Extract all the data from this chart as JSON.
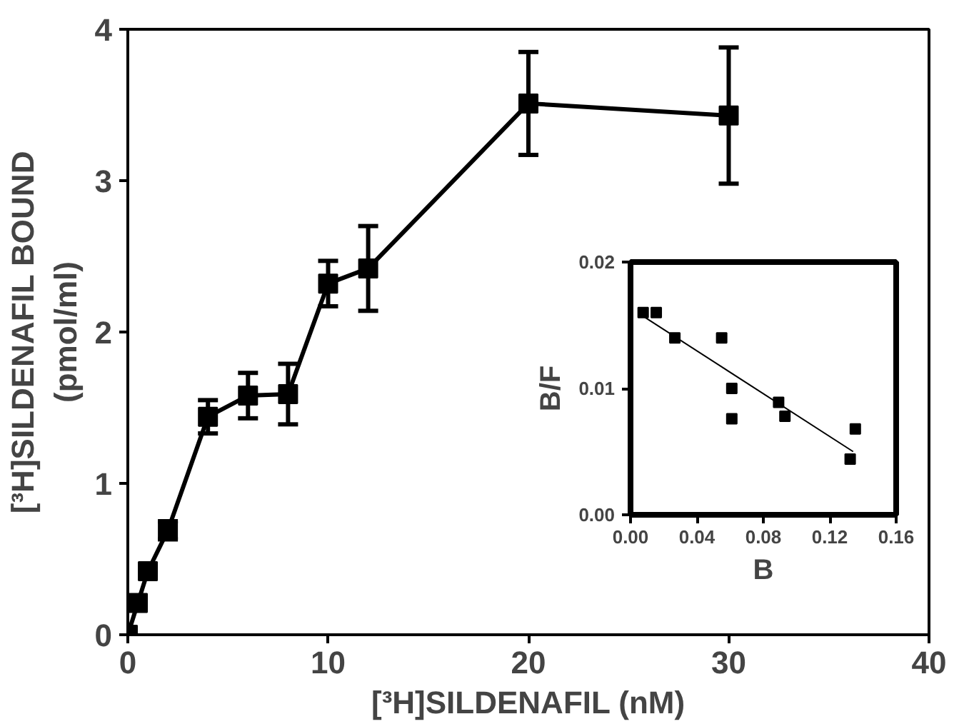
{
  "chart_data": [
    {
      "type": "line",
      "xlabel": "[³H]SILDENAFIL (nM)",
      "ylabel": "[³H]SILDENAFIL BOUND\n(pmol/ml)",
      "x": [
        0,
        0.5,
        1,
        2,
        4,
        6,
        8,
        10,
        12,
        20,
        30
      ],
      "xlim": [
        0,
        40
      ],
      "xticks": [
        0,
        10,
        20,
        30,
        40
      ],
      "ylim": [
        0,
        4
      ],
      "yticks": [
        0,
        1,
        2,
        3,
        4
      ],
      "marker": "square",
      "grid": false,
      "series": [
        {
          "color": "#000000",
          "values": [
            0,
            0.21,
            0.42,
            0.69,
            1.44,
            1.58,
            1.59,
            2.32,
            2.42,
            3.51,
            3.43
          ],
          "errors": [
            null,
            null,
            null,
            0.06,
            0.11,
            0.15,
            0.2,
            0.15,
            0.28,
            0.34,
            0.45
          ]
        }
      ]
    },
    {
      "type": "scatter",
      "xlabel": "B",
      "ylabel": "B/F",
      "xlim": [
        0,
        0.16
      ],
      "xticks": [
        {
          "value": 0,
          "label": "0.00"
        },
        0.04,
        0.08,
        0.12,
        0.16
      ],
      "ylim": [
        0,
        0.02
      ],
      "yticks": [
        {
          "value": 0,
          "label": "0.00"
        },
        {
          "value": 0.01,
          "label": "0.01"
        },
        {
          "value": 0.02,
          "label": "0.02"
        }
      ],
      "marker": "square",
      "grid": false,
      "series": [
        {
          "color": "#000000",
          "x": [
            0.0076,
            0.0155,
            0.0267,
            0.0549,
            0.061,
            0.061,
            0.0892,
            0.093,
            0.1323,
            0.1354
          ],
          "values": [
            0.016,
            0.016,
            0.014,
            0.014,
            0.01,
            0.0076,
            0.0089,
            0.0078,
            0.0044,
            0.0068
          ]
        },
        {
          "type": "line",
          "marker": "none",
          "color": "#000000",
          "x": [
            0.0066,
            0.1341
          ],
          "values": [
            0.0158,
            0.005
          ]
        }
      ]
    }
  ]
}
